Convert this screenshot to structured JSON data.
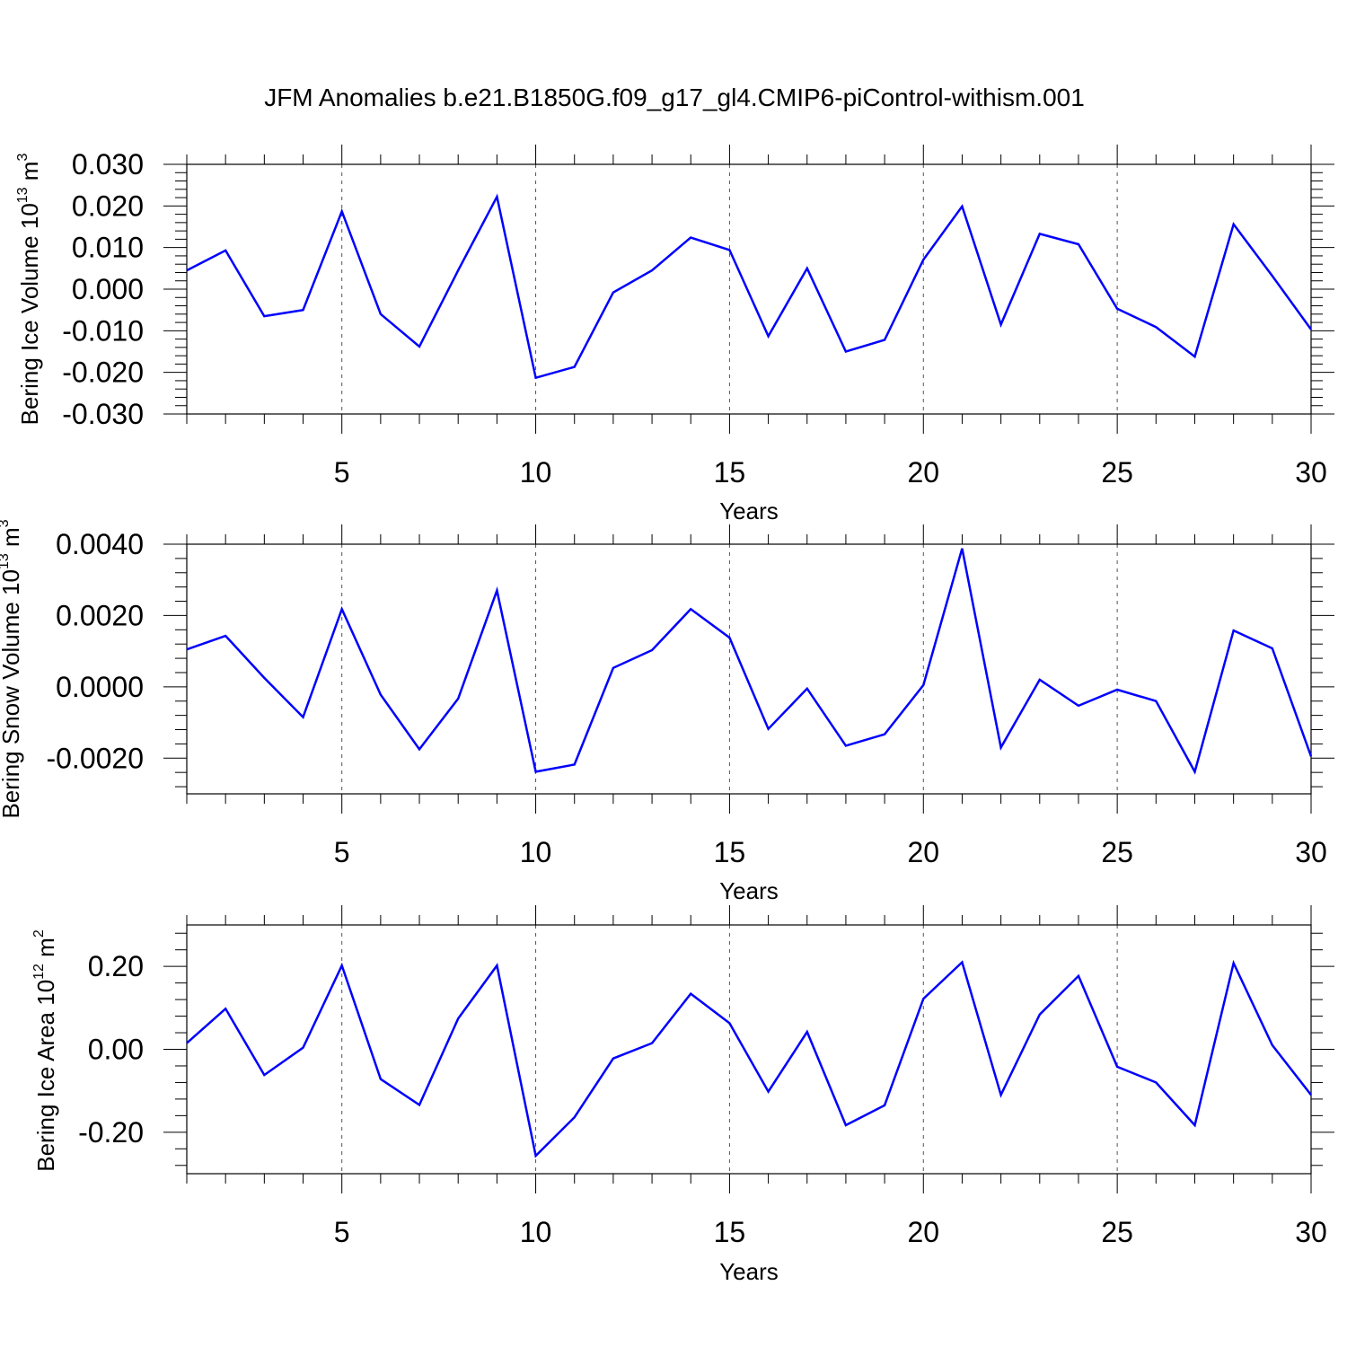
{
  "title": "JFM Anomalies b.e21.B1850G.f09_g17_gl4.CMIP6-piControl-withism.001",
  "line_color": "#0000ff",
  "chart_data": [
    {
      "type": "line",
      "ylabel": "Bering Ice Volume 10",
      "ylabel_exp": "13",
      "ylabel_unit": "m",
      "ylabel_unit_exp": "3",
      "xlabel": "Years",
      "xlim": [
        1,
        30
      ],
      "ylim": [
        -0.03,
        0.03
      ],
      "x_ticks": [
        5,
        10,
        15,
        20,
        25,
        30
      ],
      "x_tick_labels": [
        "5",
        "10",
        "15",
        "20",
        "25",
        "30"
      ],
      "y_ticks": [
        -0.03,
        -0.02,
        -0.01,
        0.0,
        0.01,
        0.02,
        0.03
      ],
      "y_tick_labels": [
        "-0.030",
        "-0.020",
        "-0.010",
        "0.000",
        "0.010",
        "0.020",
        "0.030"
      ],
      "grid": "dashed vertical at major x ticks",
      "x": [
        1,
        2,
        3,
        4,
        5,
        6,
        7,
        8,
        9,
        10,
        11,
        12,
        13,
        14,
        15,
        16,
        17,
        18,
        19,
        20,
        21,
        22,
        23,
        24,
        25,
        26,
        27,
        28,
        29,
        30
      ],
      "series": [
        {
          "values": [
            0.0045,
            0.0093,
            -0.0065,
            -0.005,
            0.0187,
            -0.006,
            -0.0138,
            0.0045,
            0.0222,
            -0.0213,
            -0.0187,
            -0.0008,
            0.0045,
            0.0124,
            0.0094,
            -0.0113,
            0.005,
            -0.015,
            -0.0122,
            0.0071,
            0.0199,
            -0.0085,
            0.0133,
            0.0108,
            -0.0047,
            -0.0091,
            -0.0162,
            0.0156,
            0.0032,
            -0.0097
          ]
        }
      ]
    },
    {
      "type": "line",
      "ylabel": "Bering Snow Volume 10",
      "ylabel_exp": "13",
      "ylabel_unit": "m",
      "ylabel_unit_exp": "3",
      "xlabel": "Years",
      "xlim": [
        1,
        30
      ],
      "ylim": [
        -0.003,
        0.004
      ],
      "x_ticks": [
        5,
        10,
        15,
        20,
        25,
        30
      ],
      "x_tick_labels": [
        "5",
        "10",
        "15",
        "20",
        "25",
        "30"
      ],
      "y_ticks": [
        -0.002,
        0.0,
        0.002,
        0.004
      ],
      "y_tick_labels": [
        "-0.0020",
        "0.0000",
        "0.0020",
        "0.0040"
      ],
      "grid": "dashed vertical at major x ticks",
      "x": [
        1,
        2,
        3,
        4,
        5,
        6,
        7,
        8,
        9,
        10,
        11,
        12,
        13,
        14,
        15,
        16,
        17,
        18,
        19,
        20,
        21,
        22,
        23,
        24,
        25,
        26,
        27,
        28,
        29,
        30
      ],
      "series": [
        {
          "values": [
            0.00105,
            0.00143,
            0.00025,
            -0.00085,
            0.00218,
            -0.00022,
            -0.00175,
            -0.00033,
            0.0027,
            -0.00238,
            -0.00218,
            0.00053,
            0.00103,
            0.00218,
            0.00138,
            -0.00118,
            -5e-05,
            -0.00165,
            -0.00133,
            5e-05,
            0.00388,
            -0.0017,
            0.0002,
            -0.00053,
            -8e-05,
            -0.0004,
            -0.00238,
            0.00158,
            0.00108,
            -0.00195
          ]
        }
      ]
    },
    {
      "type": "line",
      "ylabel": "Bering Ice Area 10",
      "ylabel_exp": "12",
      "ylabel_unit": "m",
      "ylabel_unit_exp": "2",
      "xlabel": "Years",
      "xlim": [
        1,
        30
      ],
      "ylim": [
        -0.3,
        0.3
      ],
      "x_ticks": [
        5,
        10,
        15,
        20,
        25,
        30
      ],
      "x_tick_labels": [
        "5",
        "10",
        "15",
        "20",
        "25",
        "30"
      ],
      "y_ticks": [
        -0.2,
        0.0,
        0.2
      ],
      "y_tick_labels": [
        "-0.20",
        "0.00",
        "0.20"
      ],
      "grid": "dashed vertical at major x ticks",
      "x": [
        1,
        2,
        3,
        4,
        5,
        6,
        7,
        8,
        9,
        10,
        11,
        12,
        13,
        14,
        15,
        16,
        17,
        18,
        19,
        20,
        21,
        22,
        23,
        24,
        25,
        26,
        27,
        28,
        29,
        30
      ],
      "series": [
        {
          "values": [
            0.015,
            0.098,
            -0.062,
            0.004,
            0.202,
            -0.072,
            -0.134,
            0.074,
            0.202,
            -0.257,
            -0.164,
            -0.022,
            0.015,
            0.134,
            0.063,
            -0.102,
            0.042,
            -0.183,
            -0.135,
            0.122,
            0.21,
            -0.11,
            0.084,
            0.177,
            -0.042,
            -0.08,
            -0.183,
            0.208,
            0.01,
            -0.11
          ]
        }
      ]
    }
  ]
}
